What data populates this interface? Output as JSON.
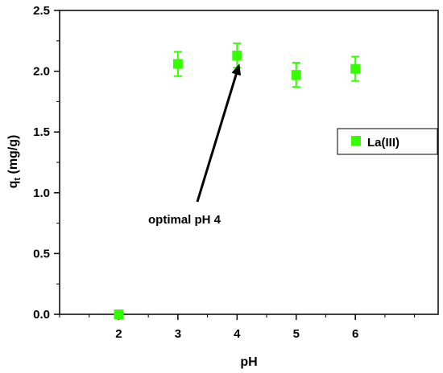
{
  "chart_data": {
    "type": "scatter",
    "x": [
      2,
      3,
      4,
      5,
      6
    ],
    "series": [
      {
        "name": "La(III)",
        "values": [
          0.0,
          2.06,
          2.13,
          1.97,
          2.02
        ],
        "errors": [
          0.0,
          0.1,
          0.1,
          0.1,
          0.1
        ],
        "color": "#33ff00",
        "marker": "square"
      }
    ],
    "xlabel": "pH",
    "ylabel_main": "q",
    "ylabel_sub": "t",
    "ylabel_unit": " (mg/g)",
    "xlim": [
      1.0,
      7.4
    ],
    "ylim": [
      0.0,
      2.5
    ],
    "xticks": [
      2,
      3,
      4,
      5,
      6
    ],
    "xtick_labels": [
      "2",
      "3",
      "4",
      "5",
      "6"
    ],
    "yticks": [
      0.0,
      0.5,
      1.0,
      1.5,
      2.0,
      2.5
    ],
    "ytick_labels": [
      "0.0",
      "0.5",
      "1.0",
      "1.5",
      "2.0",
      "2.5"
    ],
    "legend": {
      "label": "La(III)",
      "position": "right"
    },
    "annotation": {
      "text": "optimal pH 4",
      "target_x": 4,
      "target_y": 2.13
    },
    "grid": false
  }
}
